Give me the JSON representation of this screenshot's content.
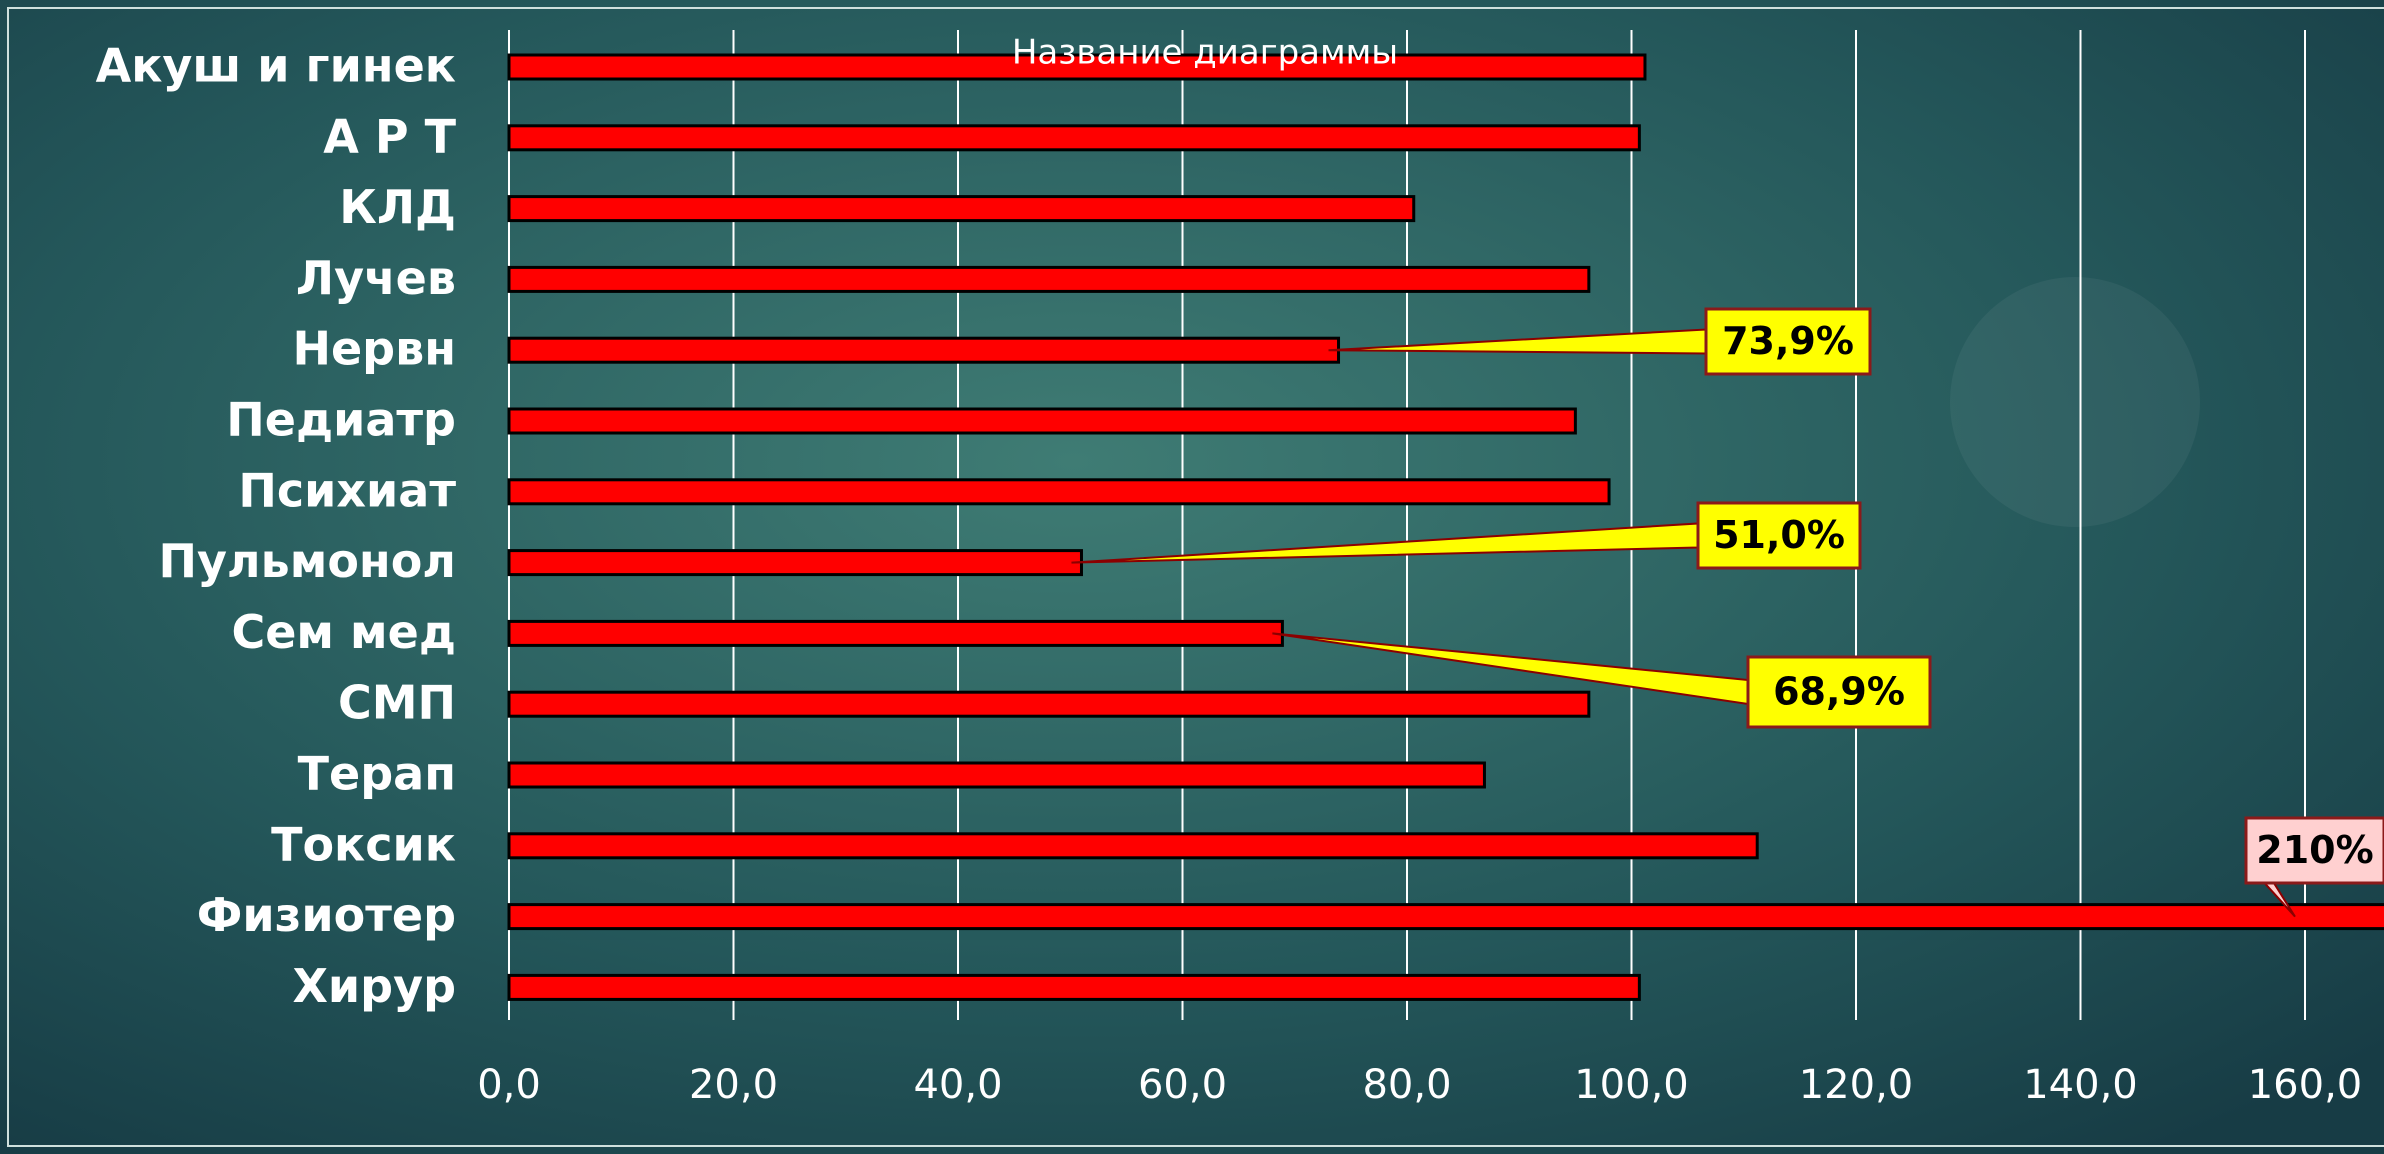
{
  "chart_data": {
    "type": "bar",
    "orientation": "horizontal",
    "title": "Название диаграммы",
    "categories": [
      "Акуш и гинек",
      "А Р Т",
      "КЛД",
      "Лучев",
      "Нервн",
      "Педиатр",
      "Психиат",
      "Пульмонол",
      "Сем  мед",
      "СМП",
      "Терап",
      "Токсик",
      "Физиотер",
      "Хирур"
    ],
    "values": [
      101.2,
      100.7,
      80.6,
      96.2,
      73.9,
      95.0,
      98.0,
      51.0,
      68.9,
      96.2,
      86.9,
      111.2,
      210,
      100.7
    ],
    "value_labels": [
      null,
      null,
      null,
      null,
      "73,9%",
      null,
      null,
      "51,0%",
      "68,9%",
      null,
      null,
      null,
      "210%",
      null
    ],
    "color": "#ff0000",
    "xlim": [
      0,
      160
    ],
    "xticks": [
      {
        "value": 0,
        "label": "0,0"
      },
      {
        "value": 20,
        "label": "20,0"
      },
      {
        "value": 40,
        "label": "40,0"
      },
      {
        "value": 60,
        "label": "60,0"
      },
      {
        "value": 80,
        "label": "80,0"
      },
      {
        "value": 100,
        "label": "100,0"
      },
      {
        "value": 120,
        "label": "120,0"
      },
      {
        "value": 140,
        "label": "140,0"
      },
      {
        "value": 160,
        "label": "160,0"
      }
    ],
    "grid": true
  }
}
